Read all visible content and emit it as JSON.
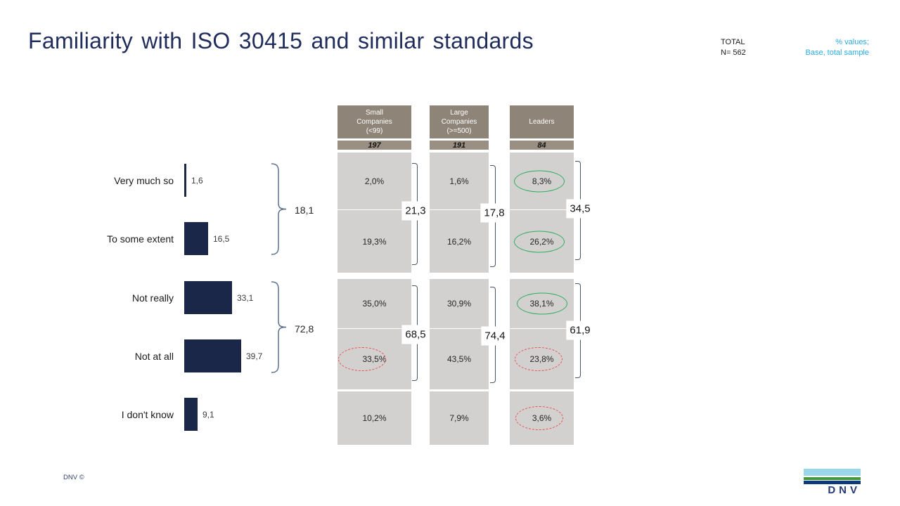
{
  "title": "Familiarity with ISO 30415 and similar standards",
  "meta": {
    "total_label": "TOTAL",
    "total_n": "N= 562",
    "note1": "% values;",
    "note2": "Base, total sample"
  },
  "footer": {
    "copyright": "DNV ©",
    "logo_text": "DNV"
  },
  "chart_data": {
    "type": "bar",
    "orientation": "horizontal",
    "title": "Familiarity with ISO 30415 and similar standards",
    "unit": "%",
    "total_n": 562,
    "categories": [
      "Very much so",
      "To some extent",
      "Not really",
      "Not at all",
      "I don't know"
    ],
    "values": [
      1.6,
      16.5,
      33.1,
      39.7,
      9.1
    ],
    "value_labels": [
      "1,6",
      "16,5",
      "33,1",
      "39,7",
      "9,1"
    ],
    "bracket_groups": [
      {
        "label": "18,1",
        "value": 18.1,
        "covers": [
          "Very much so",
          "To some extent"
        ]
      },
      {
        "label": "72,8",
        "value": 72.8,
        "covers": [
          "Not really",
          "Not at all"
        ]
      }
    ],
    "segments": {
      "columns": [
        {
          "header_lines": [
            "Small",
            "Companies",
            "(<99)"
          ],
          "base": "197",
          "cells": [
            "2,0%",
            "19,3%",
            "35,0%",
            "33,5%",
            "10,2%"
          ],
          "values": [
            2.0,
            19.3,
            35.0,
            33.5,
            10.2
          ],
          "cell_highlights": [
            null,
            null,
            null,
            "red",
            null
          ],
          "groups": [
            "21,3",
            "68,5"
          ],
          "group_values": [
            21.3,
            68.5
          ]
        },
        {
          "header_lines": [
            "Large",
            "Companies",
            "(>=500)"
          ],
          "base": "191",
          "cells": [
            "1,6%",
            "16,2%",
            "30,9%",
            "43,5%",
            "7,9%"
          ],
          "values": [
            1.6,
            16.2,
            30.9,
            43.5,
            7.9
          ],
          "cell_highlights": [
            null,
            null,
            null,
            null,
            null
          ],
          "groups": [
            "17,8",
            "74,4"
          ],
          "group_values": [
            17.8,
            74.4
          ]
        },
        {
          "header_lines": [
            "Leaders"
          ],
          "base": "84",
          "cells": [
            "8,3%",
            "26,2%",
            "38,1%",
            "23,8%",
            "3,6%"
          ],
          "values": [
            8.3,
            26.2,
            38.1,
            23.8,
            3.6
          ],
          "cell_highlights": [
            "green",
            "green",
            "green",
            "red",
            "red"
          ],
          "groups": [
            "34,5",
            "61,9"
          ],
          "group_values": [
            34.5,
            61.9
          ]
        }
      ]
    }
  },
  "colors": {
    "navy_bar": "#1b2749",
    "title_navy": "#1f2c5c",
    "header_taupe": "#8e8477",
    "base_taupe": "#998f82",
    "cell_gray": "#d3d1cf",
    "bracket_navy": "#44546a",
    "brace_blue": "#5c6f8e",
    "green_highlight": "#2eac5f",
    "red_highlight": "#e8504f",
    "cyan_note": "#29a9e0",
    "text_dark": "#1a1a1a",
    "footer_navy": "#2f3f6d",
    "logo_lightblue": "#9bd7eb",
    "logo_green": "#3f9c35",
    "logo_blue": "#0c3a7d",
    "logo_text_navy": "#253a75"
  }
}
